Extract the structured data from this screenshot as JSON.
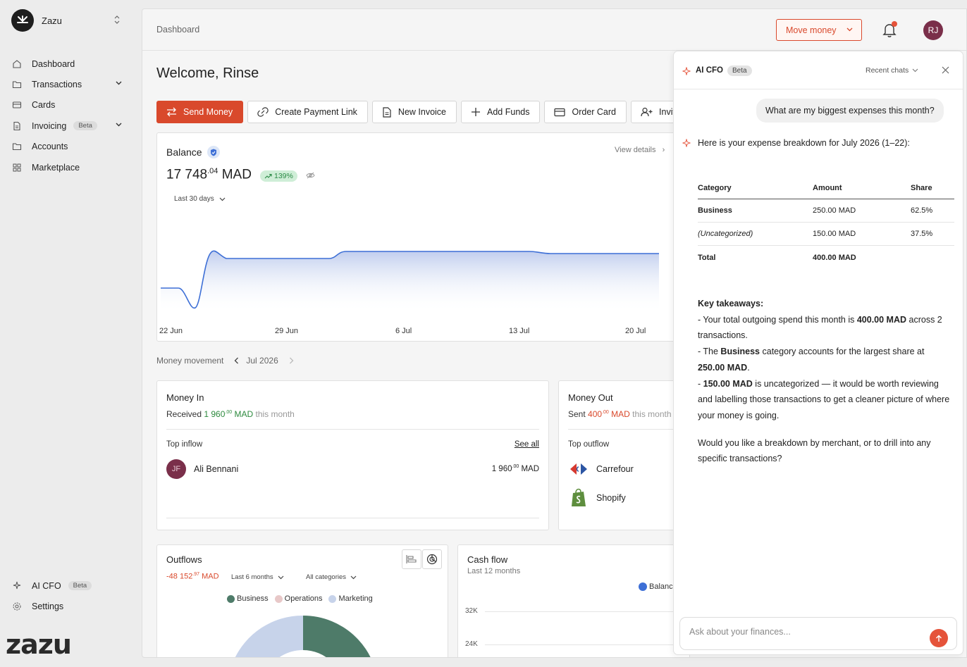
{
  "workspace": {
    "name": "Zazu",
    "wordmark": "zazu"
  },
  "sidebar": {
    "items": [
      {
        "label": "Dashboard",
        "icon": "home-icon"
      },
      {
        "label": "Transactions",
        "icon": "folder-icon",
        "expandable": true
      },
      {
        "label": "Cards",
        "icon": "card-icon"
      },
      {
        "label": "Invoicing",
        "icon": "document-icon",
        "badge": "Beta",
        "expandable": true
      },
      {
        "label": "Accounts",
        "icon": "folder-icon"
      },
      {
        "label": "Marketplace",
        "icon": "grid-icon"
      }
    ],
    "bottom": [
      {
        "label": "AI CFO",
        "icon": "sparkle-icon",
        "badge": "Beta"
      },
      {
        "label": "Settings",
        "icon": "gear-icon"
      }
    ]
  },
  "topbar": {
    "breadcrumb": "Dashboard",
    "move_money": "Move money",
    "avatar_initials": "RJ"
  },
  "welcome": "Welcome, Rinse",
  "actions": [
    "Send Money",
    "Create Payment Link",
    "New Invoice",
    "Add Funds",
    "Order Card",
    "Invite"
  ],
  "balance": {
    "title": "Balance",
    "view_details": "View details",
    "amount_int": "17 748",
    "amount_dec": ".04",
    "currency": "MAD",
    "change": "139%",
    "range": "Last 30 days",
    "x_labels": [
      "22 Jun",
      "29 Jun",
      "6 Jul",
      "13 Jul",
      "20 Jul"
    ],
    "line_color": "#3d6fd6"
  },
  "money_movement": {
    "label": "Money movement",
    "period": "Jul 2026"
  },
  "money_in": {
    "title": "Money In",
    "prefix": "Received",
    "amount_int": "1 960",
    "amount_dec": ".00",
    "currency": "MAD",
    "suffix": "this month",
    "top_label": "Top inflow",
    "see_all": "See all",
    "inflow": {
      "initials": "JF",
      "name": "Ali Bennani",
      "amount_int": "1 960",
      "amount_dec": ".00",
      "currency": "MAD"
    }
  },
  "money_out": {
    "title": "Money Out",
    "prefix": "Sent",
    "amount_int": "400",
    "amount_dec": ".00",
    "currency": "MAD",
    "suffix": "this month",
    "top_label": "Top outflow",
    "merchants": [
      "Carrefour",
      "Shopify"
    ]
  },
  "outflows": {
    "title": "Outflows",
    "amount_int": "-48 152",
    "amount_dec": ".97",
    "currency": "MAD",
    "range": "Last 6 months",
    "categories_filter": "All categories",
    "legend": [
      {
        "name": "Business",
        "color": "#4e7b69"
      },
      {
        "name": "Operations",
        "color": "#e8c8c8"
      },
      {
        "name": "Marketing",
        "color": "#c7d3ea"
      }
    ]
  },
  "cashflow": {
    "title": "Cash flow",
    "subtitle": "Last 12 months",
    "legend": "Balance",
    "y_ticks": [
      "32K",
      "24K"
    ]
  },
  "ai": {
    "title": "AI CFO",
    "badge": "Beta",
    "recent": "Recent chats",
    "question": "What are my biggest expenses this month?",
    "intro": "Here is your expense breakdown for July 2026 (1–22):",
    "table": {
      "headers": [
        "Category",
        "Amount",
        "Share"
      ],
      "rows": [
        [
          "Business",
          "250.00 MAD",
          "62.5%"
        ],
        [
          "(Uncategorized)",
          "150.00 MAD",
          "37.5%"
        ],
        [
          "Total",
          "400.00 MAD",
          ""
        ]
      ]
    },
    "takeaways_title": "Key takeaways:",
    "t1_a": "- Your total outgoing spend this month is ",
    "t1_b": "400.00 MAD",
    "t1_c": " across 2 transactions.",
    "t2_a": "- The ",
    "t2_b": "Business",
    "t2_c": " category accounts for the largest share at ",
    "t2_d": "250.00 MAD",
    "t2_e": ".",
    "t3_a": "- ",
    "t3_b": "150.00 MAD",
    "t3_c": " is uncategorized — it would be worth reviewing and labelling those transactions to get a cleaner picture of where your money is going.",
    "followup": "Would you like a breakdown by merchant, or to drill into any specific transactions?",
    "input_placeholder": "Ask about your finances...",
    "accent": "#e5533a"
  }
}
